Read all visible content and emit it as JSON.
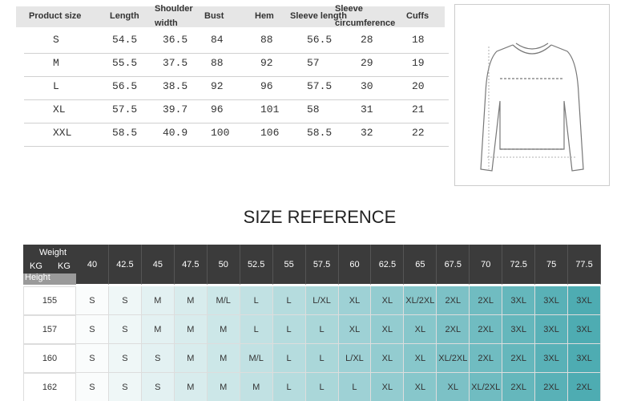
{
  "size_table": {
    "headers": [
      "Product size",
      "Length",
      "Shoulder width",
      "Bust",
      "Hem",
      "Sleeve length",
      "Sleeve circumference",
      "Cuffs"
    ],
    "rows": [
      [
        "S",
        "54.5",
        "36.5",
        "84",
        "88",
        "56.5",
        "28",
        "18"
      ],
      [
        "M",
        "55.5",
        "37.5",
        "88",
        "92",
        "57",
        "29",
        "19"
      ],
      [
        "L",
        "56.5",
        "38.5",
        "92",
        "96",
        "57.5",
        "30",
        "20"
      ],
      [
        "XL",
        "57.5",
        "39.7",
        "96",
        "101",
        "58",
        "31",
        "21"
      ],
      [
        "XXL",
        "58.5",
        "40.9",
        "100",
        "106",
        "58.5",
        "32",
        "22"
      ]
    ]
  },
  "title": "SIZE REFERENCE",
  "reference_table": {
    "corner": {
      "weight": "Weight",
      "kg_left": "KG",
      "kg_right": "KG",
      "height": "Height"
    },
    "weights": [
      "40",
      "42.5",
      "45",
      "47.5",
      "50",
      "52.5",
      "55",
      "57.5",
      "60",
      "62.5",
      "65",
      "67.5",
      "70",
      "72.5",
      "75",
      "77.5"
    ],
    "rows": [
      {
        "height": "155",
        "sizes": [
          "S",
          "S",
          "M",
          "M",
          "M/L",
          "L",
          "L",
          "L/XL",
          "XL",
          "XL",
          "XL/2XL",
          "2XL",
          "2XL",
          "3XL",
          "3XL",
          "3XL"
        ]
      },
      {
        "height": "157",
        "sizes": [
          "S",
          "S",
          "M",
          "M",
          "M",
          "L",
          "L",
          "L",
          "XL",
          "XL",
          "XL",
          "2XL",
          "2XL",
          "3XL",
          "3XL",
          "3XL"
        ]
      },
      {
        "height": "160",
        "sizes": [
          "S",
          "S",
          "S",
          "M",
          "M",
          "M/L",
          "L",
          "L",
          "L/XL",
          "XL",
          "XL",
          "XL/2XL",
          "2XL",
          "2XL",
          "3XL",
          "3XL"
        ]
      },
      {
        "height": "162",
        "sizes": [
          "S",
          "S",
          "S",
          "M",
          "M",
          "M",
          "L",
          "L",
          "L",
          "XL",
          "XL",
          "XL",
          "XL/2XL",
          "2XL",
          "2XL",
          "2XL"
        ]
      }
    ]
  }
}
